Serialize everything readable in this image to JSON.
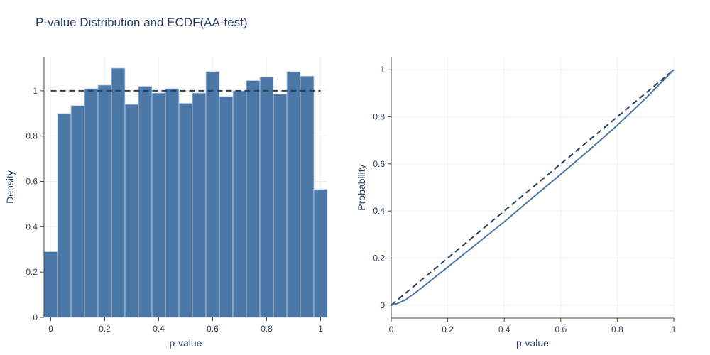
{
  "title": "P-value Distribution and ECDF(AA-test)",
  "colors": {
    "bar": "#4c78a8",
    "bar_edge": "#c9d6e6",
    "reference": "#2a3f5f",
    "ecdf": "#4c78a8",
    "grid": "#ebf0f8"
  },
  "chart_data": [
    {
      "type": "bar",
      "name": "histogram",
      "xlabel": "p-value",
      "ylabel": "Density",
      "bin_edges": [
        -0.025,
        0.025,
        0.075,
        0.125,
        0.175,
        0.225,
        0.275,
        0.325,
        0.375,
        0.425,
        0.475,
        0.525,
        0.575,
        0.625,
        0.675,
        0.725,
        0.775,
        0.825,
        0.875,
        0.925,
        0.975,
        1.025
      ],
      "values": [
        0.29,
        0.9,
        0.935,
        1.01,
        1.025,
        1.1,
        0.94,
        1.02,
        0.99,
        1.01,
        0.945,
        0.99,
        1.085,
        0.975,
        1.0,
        1.045,
        1.06,
        0.985,
        1.085,
        1.065,
        0.565
      ],
      "reference_line": {
        "x": [
          0,
          1
        ],
        "y": [
          1,
          1
        ],
        "style": "dashed"
      },
      "xlim": [
        -0.025,
        1.025
      ],
      "ylim": [
        0,
        1.15
      ],
      "xticks": [
        0,
        0.2,
        0.4,
        0.6,
        0.8,
        1
      ],
      "xtick_labels": [
        "0",
        "0.2",
        "0.4",
        "0.6",
        "0.8",
        "1"
      ],
      "yticks": [
        0,
        0.2,
        0.4,
        0.6,
        0.8,
        1
      ],
      "ytick_labels": [
        "0",
        "0.2",
        "0.4",
        "0.6",
        "0.8",
        "1"
      ],
      "grid": true
    },
    {
      "type": "line",
      "name": "ecdf",
      "xlabel": "p-value",
      "ylabel": "Probability",
      "series": [
        {
          "x": [
            0,
            0.02,
            0.05,
            0.1,
            0.2,
            0.3,
            0.4,
            0.5,
            0.6,
            0.7,
            0.8,
            0.9,
            1.0
          ],
          "y": [
            0,
            0.006,
            0.022,
            0.066,
            0.162,
            0.258,
            0.354,
            0.456,
            0.556,
            0.658,
            0.764,
            0.878,
            1.0
          ]
        }
      ],
      "reference_line": {
        "x": [
          0,
          1
        ],
        "y": [
          0,
          1
        ],
        "style": "dashed"
      },
      "xlim": [
        0,
        1
      ],
      "ylim": [
        -0.055,
        1.055
      ],
      "xticks": [
        0,
        0.2,
        0.4,
        0.6,
        0.8,
        1
      ],
      "xtick_labels": [
        "0",
        "0.2",
        "0.4",
        "0.6",
        "0.8",
        "1"
      ],
      "yticks": [
        0,
        0.2,
        0.4,
        0.6,
        0.8,
        1
      ],
      "ytick_labels": [
        "0",
        "0.2",
        "0.4",
        "0.6",
        "0.8",
        "1"
      ],
      "grid": true
    }
  ]
}
